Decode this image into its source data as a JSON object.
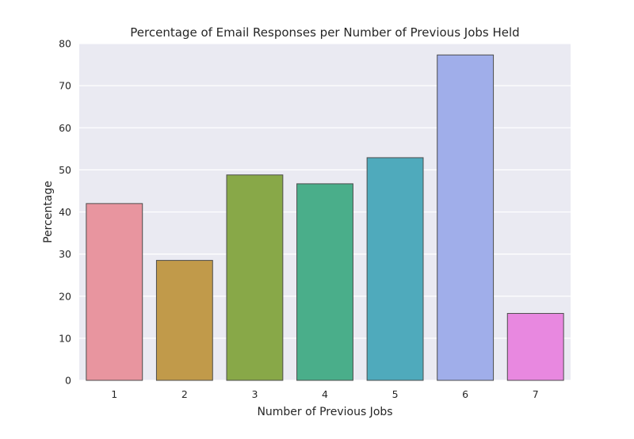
{
  "chart_data": {
    "type": "bar",
    "title": "Percentage of Email Responses per Number of Previous Jobs Held",
    "xlabel": "Number of Previous Jobs",
    "ylabel": "Percentage",
    "categories": [
      "1",
      "2",
      "3",
      "4",
      "5",
      "6",
      "7"
    ],
    "values": [
      42.0,
      28.5,
      48.8,
      46.7,
      52.9,
      77.3,
      15.9
    ],
    "ylim": [
      0,
      80
    ],
    "yticks": [
      0,
      10,
      20,
      30,
      40,
      50,
      60,
      70,
      80
    ],
    "grid": true,
    "legend": "none",
    "colors": [
      "#e8959f",
      "#c19a4a",
      "#88a848",
      "#4aae8a",
      "#4faabc",
      "#a0aeea",
      "#e888e0"
    ],
    "background_color": "#eaeaf2",
    "grid_color": "#ffffff",
    "edge_color": "#4d4d4d"
  }
}
